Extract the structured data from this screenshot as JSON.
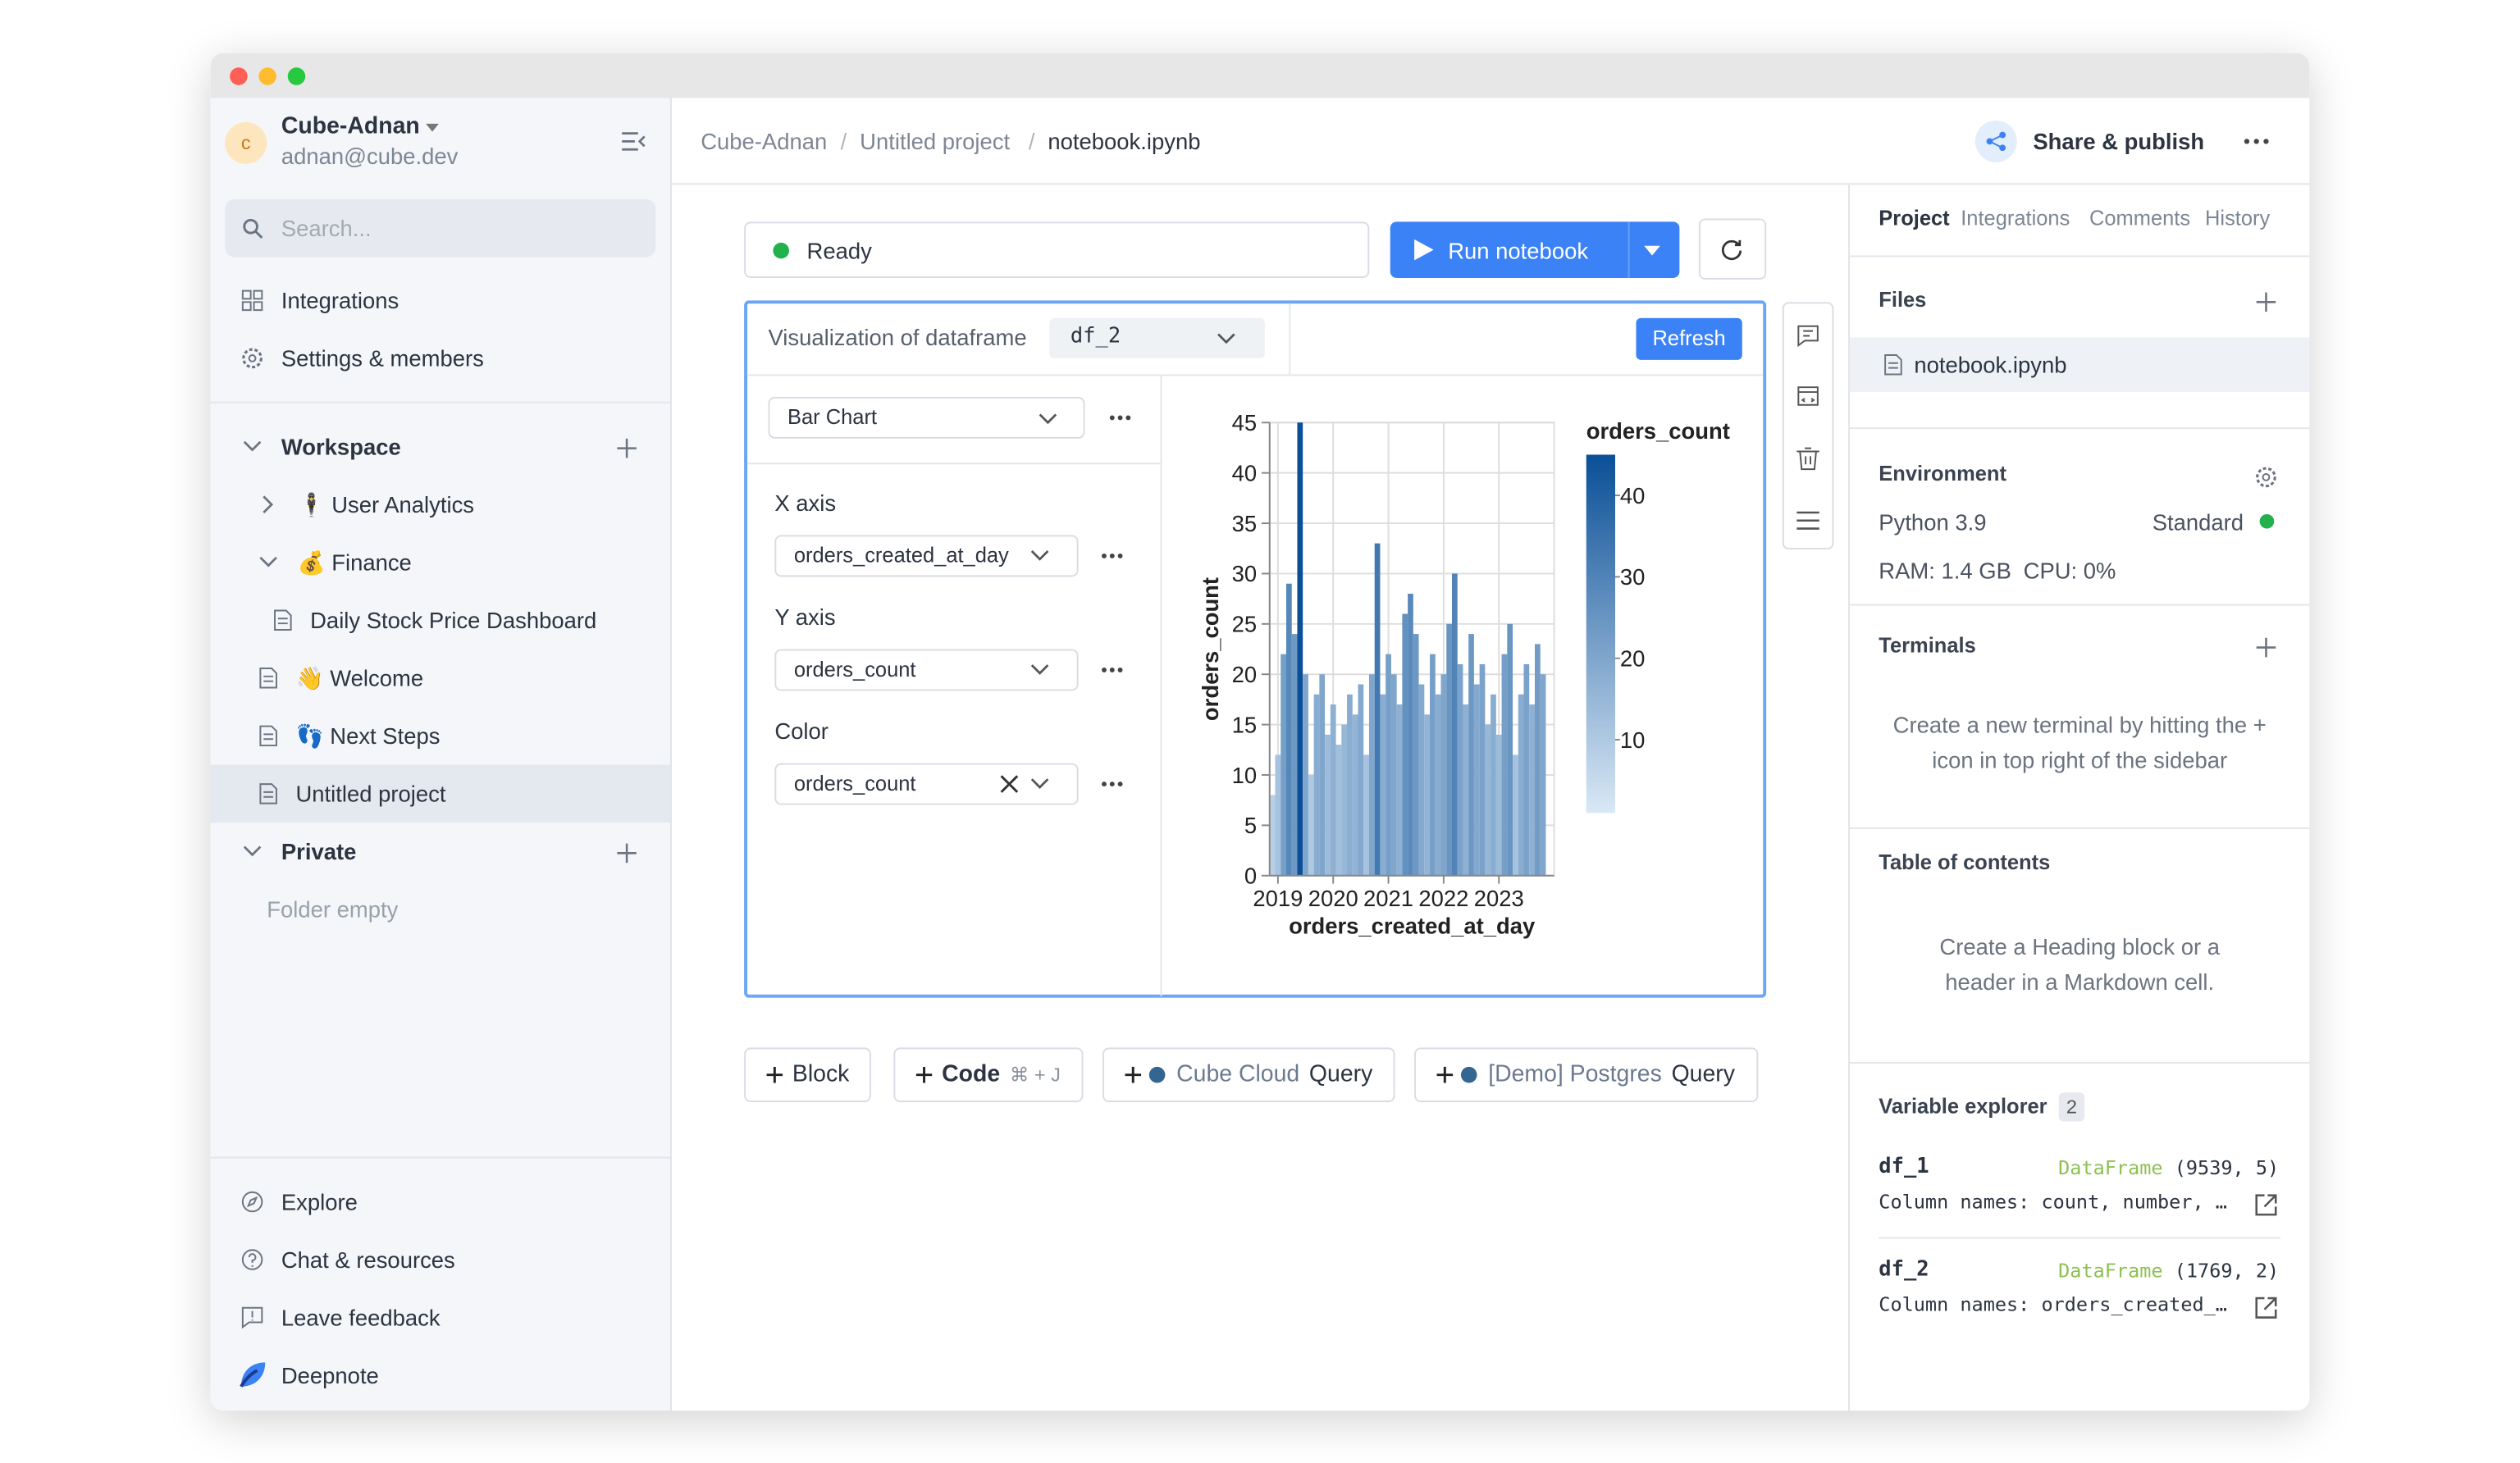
{
  "sidebar": {
    "account": {
      "avatar": "c",
      "name": "Cube-Adnan",
      "email": "adnan@cube.dev"
    },
    "search": "Search...",
    "nav": [
      "Integrations",
      "Settings & members"
    ],
    "workspace": {
      "title": "Workspace",
      "items": [
        "🕴 User Analytics",
        "💰 Finance",
        "Daily Stock Price Dashboard",
        "👋 Welcome",
        "👣 Next Steps",
        "Untitled project"
      ]
    },
    "private": {
      "title": "Private",
      "empty": "Folder empty"
    },
    "footer": [
      "Explore",
      "Chat & resources",
      "Leave feedback",
      "Deepnote"
    ]
  },
  "header": {
    "breadcrumb": [
      "Cube-Adnan",
      "Untitled project",
      "notebook.ipynb"
    ],
    "separator": "/",
    "share": "Share & publish"
  },
  "toolbar": {
    "status": "Ready",
    "run": "Run notebook"
  },
  "viz": {
    "label": "Visualization of dataframe",
    "dataframe": "df_2",
    "refresh": "Refresh",
    "chart_type": "Bar Chart",
    "x_axis_label": "X axis",
    "x_field": "orders_created_at_day",
    "y_axis_label": "Y axis",
    "y_field": "orders_count",
    "color_label": "Color",
    "color_field": "orders_count"
  },
  "chart_data": {
    "type": "bar",
    "x_label": "orders_created_at_day",
    "y_label": "orders_count",
    "x": [
      2018.9,
      2019.0,
      2019.1,
      2019.2,
      2019.3,
      2019.4,
      2019.5,
      2019.6,
      2019.7,
      2019.8,
      2019.9,
      2020.0,
      2020.1,
      2020.2,
      2020.3,
      2020.4,
      2020.5,
      2020.6,
      2020.7,
      2020.8,
      2020.9,
      2021.0,
      2021.1,
      2021.2,
      2021.3,
      2021.4,
      2021.5,
      2021.6,
      2021.7,
      2021.8,
      2021.9,
      2022.0,
      2022.1,
      2022.2,
      2022.3,
      2022.4,
      2022.5,
      2022.6,
      2022.7,
      2022.8,
      2022.9,
      2023.0,
      2023.1,
      2023.2,
      2023.3,
      2023.4,
      2023.5,
      2023.6,
      2023.7,
      2023.8
    ],
    "values": [
      8,
      12,
      22,
      29,
      24,
      45,
      20,
      10,
      18,
      20,
      14,
      17,
      13,
      15,
      18,
      16,
      19,
      12,
      20,
      33,
      18,
      22,
      20,
      17,
      26,
      28,
      24,
      19,
      16,
      22,
      18,
      20,
      25,
      30,
      21,
      17,
      24,
      19,
      21,
      15,
      18,
      14,
      22,
      25,
      12,
      18,
      21,
      17,
      23,
      20
    ],
    "xlim": [
      2018.85,
      2024.0
    ],
    "xticks": [
      2019,
      2020,
      2021,
      2022,
      2023
    ],
    "ylim": [
      0,
      45
    ],
    "yticks": [
      0,
      5,
      10,
      15,
      20,
      25,
      30,
      35,
      40,
      45
    ],
    "grid": true,
    "color_scale": {
      "title": "orders_count",
      "domain": [
        1,
        45
      ],
      "colors": [
        "#d9e8f5",
        "#0a4f97"
      ],
      "ticks": [
        10,
        20,
        30,
        40
      ]
    }
  },
  "add_blocks": [
    {
      "label": "Block"
    },
    {
      "label": "Code",
      "shortcut": "⌘ + J"
    },
    {
      "prefix": "Cube Cloud",
      "label": "Query"
    },
    {
      "prefix": "[Demo] Postgres",
      "label": "Query"
    }
  ],
  "right": {
    "tabs": [
      "Project",
      "Integrations",
      "Comments",
      "History"
    ],
    "files": {
      "title": "Files",
      "items": [
        "notebook.ipynb"
      ]
    },
    "environment": {
      "title": "Environment",
      "python": "Python 3.9",
      "tier": "Standard",
      "ram": "RAM: 1.4 GB",
      "cpu": "CPU: 0%"
    },
    "terminals": {
      "title": "Terminals",
      "hint": "Create a new terminal by hitting the + icon in top right of the sidebar"
    },
    "toc": {
      "title": "Table of contents",
      "hint": "Create a Heading block or a header in a Markdown cell."
    },
    "variables": {
      "title": "Variable explorer",
      "count": 2,
      "items": [
        {
          "name": "df_1",
          "type": "DataFrame",
          "shape": "(9539, 5)",
          "columns": "Column names: count, number, …"
        },
        {
          "name": "df_2",
          "type": "DataFrame",
          "shape": "(1769, 2)",
          "columns": "Column names: orders_created_…"
        }
      ]
    }
  }
}
